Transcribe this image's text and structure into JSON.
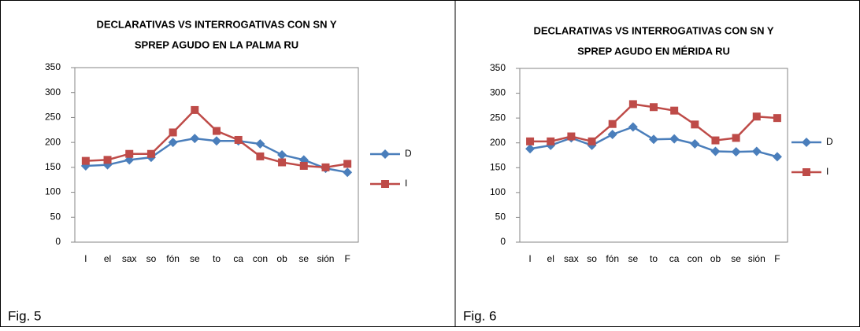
{
  "chart_data": [
    {
      "type": "line",
      "title": [
        "DECLARATIVAS VS INTERROGATIVAS CON SN Y",
        "SPREP AGUDO EN LA PALMA RU"
      ],
      "categories": [
        "I",
        "el",
        "sax",
        "so",
        "fón",
        "se",
        "to",
        "ca",
        "con",
        "ob",
        "se",
        "sión",
        "F"
      ],
      "series": [
        {
          "name": "D",
          "color": "#4a7ebb",
          "marker": "diamond",
          "values": [
            153,
            155,
            165,
            170,
            200,
            208,
            203,
            203,
            197,
            175,
            165,
            148,
            140
          ]
        },
        {
          "name": "I",
          "color": "#be4b48",
          "marker": "square",
          "values": [
            163,
            165,
            177,
            177,
            220,
            265,
            223,
            205,
            172,
            160,
            153,
            150,
            157
          ]
        }
      ],
      "ylim": [
        0,
        350
      ],
      "yticks": [
        0,
        50,
        100,
        150,
        200,
        250,
        300,
        350
      ],
      "grid": false,
      "legend": "right"
    },
    {
      "type": "line",
      "title": [
        "DECLARATIVAS VS INTERROGATIVAS CON SN Y",
        "SPREP AGUDO EN MÉRIDA RU"
      ],
      "categories": [
        "I",
        "el",
        "sax",
        "so",
        "fón",
        "se",
        "to",
        "ca",
        "con",
        "ob",
        "se",
        "sión",
        "F"
      ],
      "series": [
        {
          "name": "D",
          "color": "#4a7ebb",
          "marker": "diamond",
          "values": [
            188,
            195,
            210,
            195,
            217,
            232,
            207,
            208,
            198,
            183,
            182,
            183,
            172
          ]
        },
        {
          "name": "I",
          "color": "#be4b48",
          "marker": "square",
          "values": [
            203,
            203,
            213,
            203,
            238,
            278,
            272,
            265,
            237,
            205,
            210,
            253,
            250
          ]
        }
      ],
      "ylim": [
        0,
        350
      ],
      "yticks": [
        0,
        50,
        100,
        150,
        200,
        250,
        300,
        350
      ],
      "grid": false,
      "legend": "right"
    }
  ],
  "captions": [
    "Fig. 5",
    "Fig. 6"
  ]
}
